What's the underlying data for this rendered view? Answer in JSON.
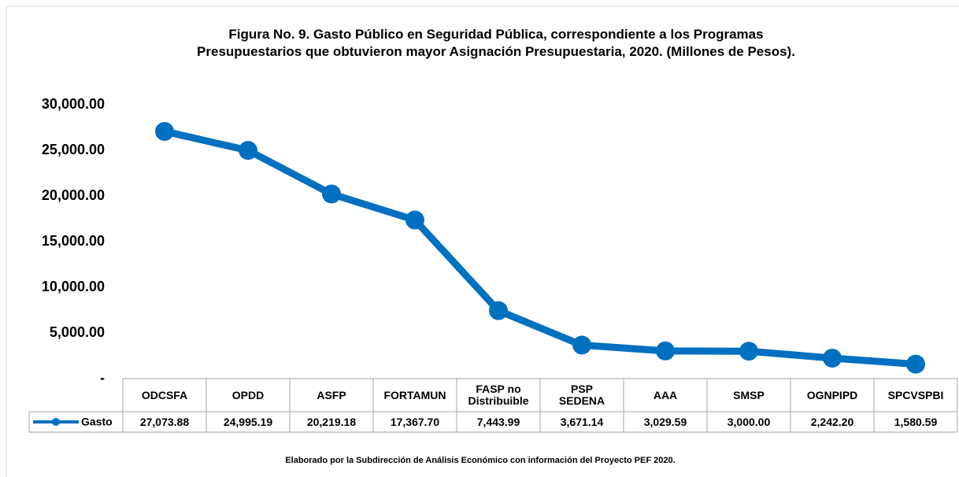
{
  "chart_data": {
    "type": "line",
    "title": "Figura No. 9. Gasto Público en Seguridad Pública, correspondiente a los Programas\nPresupuestarios que obtuvieron mayor Asignación Presupuestaria, 2020. (Millones de Pesos).",
    "categories": [
      "ODCSFA",
      "OPDD",
      "ASFP",
      "FORTAMUN",
      "FASP no\nDistribuible",
      "PSP\nSEDENA",
      "AAA",
      "SMSP",
      "OGNPIPD",
      "SPCVSPBI"
    ],
    "series": [
      {
        "name": "Gasto",
        "color": "#0070c0",
        "values": [
          27073.88,
          24995.19,
          20219.18,
          17367.7,
          7443.99,
          3671.14,
          3029.59,
          3000.0,
          2242.2,
          1580.59
        ],
        "value_labels": [
          "27,073.88",
          "24,995.19",
          "20,219.18",
          "17,367.70",
          "7,443.99",
          "3,671.14",
          "3,029.59",
          "3,000.00",
          "2,242.20",
          "1,580.59"
        ]
      }
    ],
    "ylim": [
      0,
      30000
    ],
    "yticks": [
      {
        "value": 0,
        "label": "-"
      },
      {
        "value": 5000,
        "label": "5,000.00"
      },
      {
        "value": 10000,
        "label": "10,000.00"
      },
      {
        "value": 15000,
        "label": "15,000.00"
      },
      {
        "value": 20000,
        "label": "20,000.00"
      },
      {
        "value": 25000,
        "label": "25,000.00"
      },
      {
        "value": 30000,
        "label": "30,000.00"
      }
    ],
    "grid": false,
    "note": "Elaborado por la Subdirección de Análisis Económico con información del Proyecto PEF 2020."
  }
}
